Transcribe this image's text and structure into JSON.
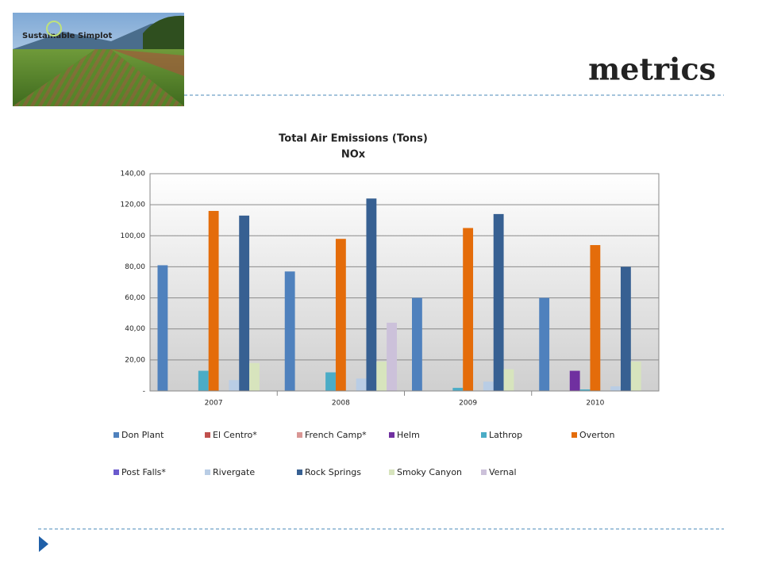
{
  "heading": "metrics",
  "logo": "Sustainable Simplot",
  "chart_data": {
    "type": "bar",
    "title": "Total Air Emissions (Tons)",
    "subtitle": "NOx",
    "categories": [
      "2007",
      "2008",
      "2009",
      "2010"
    ],
    "series": [
      {
        "name": "Don Plant",
        "color": "#4f81bd",
        "values": [
          81,
          77,
          60,
          60
        ]
      },
      {
        "name": "El Centro*",
        "color": "#c0504d",
        "values": [
          0,
          0,
          0,
          0
        ]
      },
      {
        "name": "French Camp*",
        "color": "#d99694",
        "values": [
          0,
          0,
          0,
          0
        ]
      },
      {
        "name": "Helm",
        "color": "#7030a0",
        "values": [
          0,
          0,
          0,
          13
        ]
      },
      {
        "name": "Lathrop",
        "color": "#4bacc6",
        "values": [
          13,
          12,
          2,
          1
        ]
      },
      {
        "name": "Overton",
        "color": "#e46c0a",
        "values": [
          116,
          98,
          105,
          94
        ]
      },
      {
        "name": "Post Falls*",
        "color": "#6a5acd",
        "values": [
          0,
          0,
          0,
          0
        ]
      },
      {
        "name": "Rivergate",
        "color": "#b9cde5",
        "values": [
          7,
          8,
          6,
          3
        ]
      },
      {
        "name": "Rock Springs",
        "color": "#376092",
        "values": [
          113,
          124,
          114,
          80
        ]
      },
      {
        "name": "Smoky Canyon",
        "color": "#d7e4bd",
        "values": [
          18,
          19,
          14,
          19
        ]
      },
      {
        "name": "Vernal",
        "color": "#ccc1da",
        "values": [
          0,
          44,
          0,
          0
        ]
      }
    ],
    "ylim": [
      0,
      140
    ],
    "yticks": [
      {
        "value": 0,
        "label": "-"
      },
      {
        "value": 20,
        "label": "20,00"
      },
      {
        "value": 40,
        "label": "40,00"
      },
      {
        "value": 60,
        "label": "60,00"
      },
      {
        "value": 80,
        "label": "80,00"
      },
      {
        "value": 100,
        "label": "100,00"
      },
      {
        "value": 120,
        "label": "120,00"
      },
      {
        "value": 140,
        "label": "140,00"
      }
    ],
    "grid": true,
    "legend": "bottom"
  }
}
